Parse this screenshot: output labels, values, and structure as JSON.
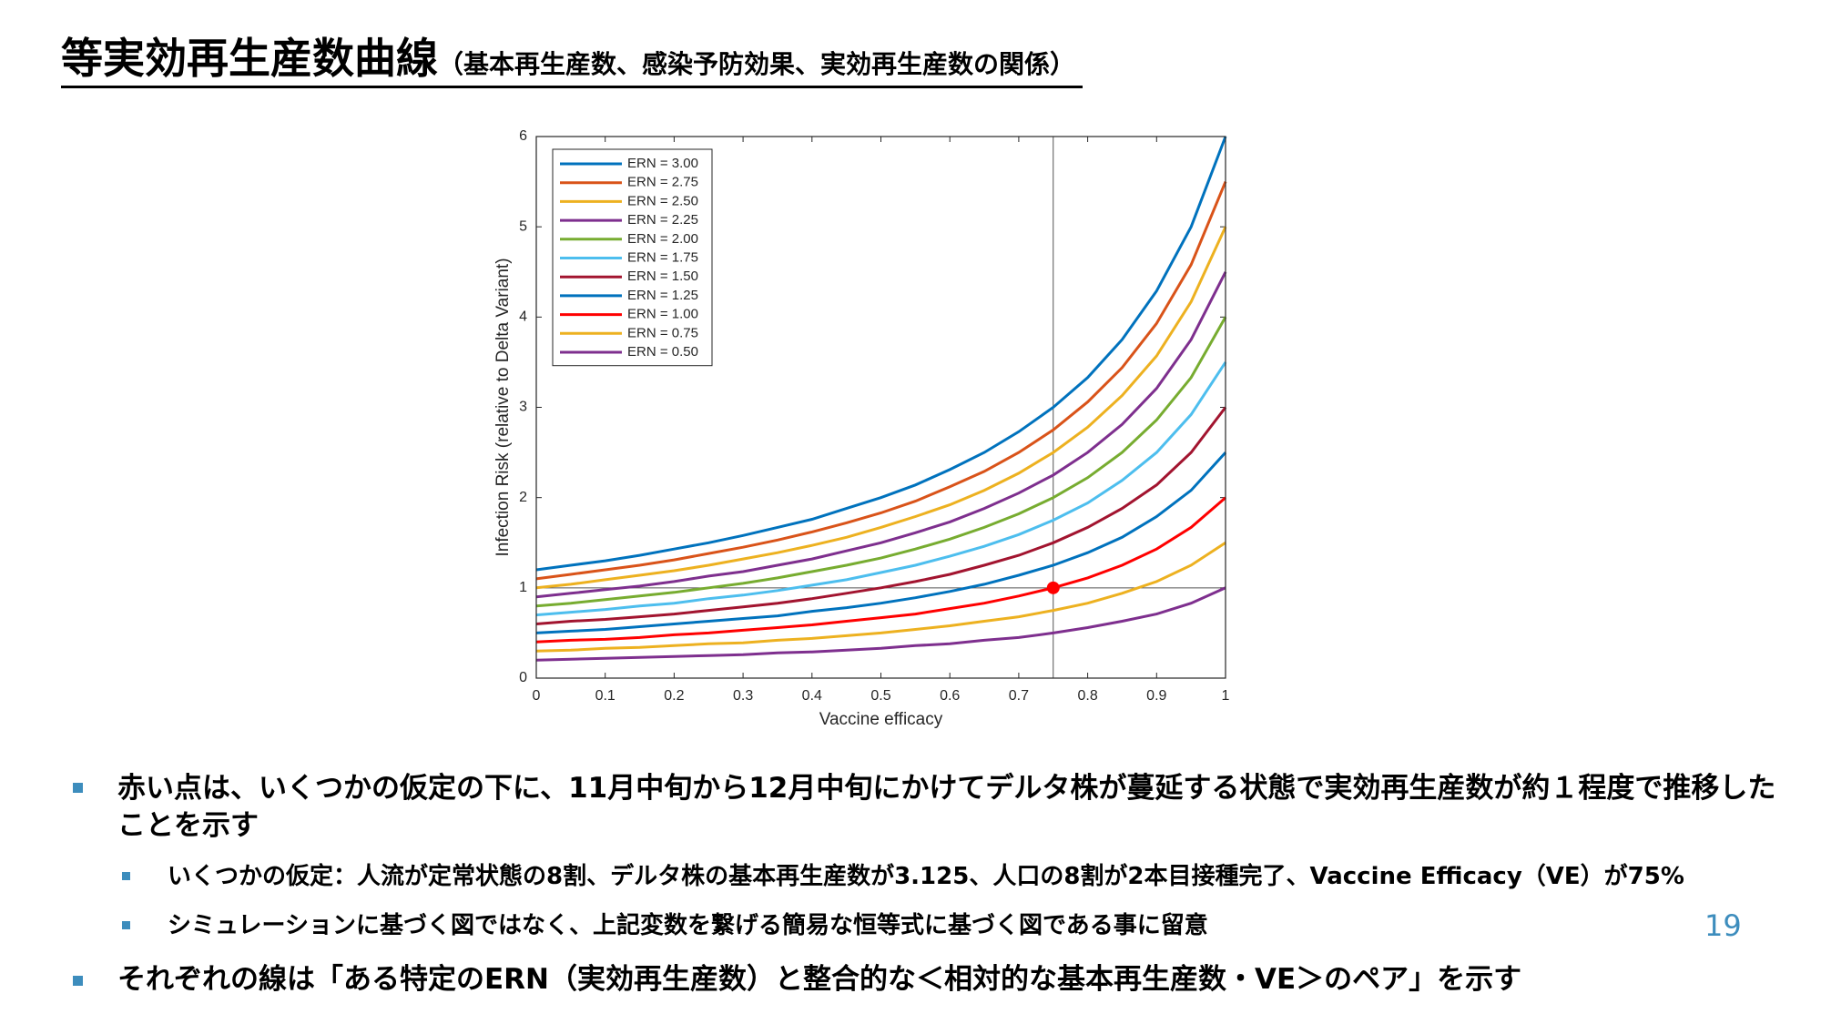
{
  "header": {
    "title": "等実効再生産数曲線",
    "subtitle": "（基本再生産数、感染予防効果、実効再生産数の関係）"
  },
  "chart_data": {
    "type": "line",
    "xlabel": "Vaccine efficacy",
    "ylabel": "Infection Risk (relative to Delta Variant)",
    "x": [
      0,
      0.05,
      0.1,
      0.15,
      0.2,
      0.25,
      0.3,
      0.35,
      0.4,
      0.45,
      0.5,
      0.55,
      0.6,
      0.65,
      0.7,
      0.75,
      0.8,
      0.85,
      0.9,
      0.95,
      1
    ],
    "series": [
      {
        "name": "ERN = 3.00",
        "color": "#0072BD",
        "values": [
          1.2,
          1.25,
          1.3,
          1.36,
          1.43,
          1.5,
          1.58,
          1.67,
          1.76,
          1.88,
          2.0,
          2.14,
          2.31,
          2.5,
          2.73,
          3.0,
          3.33,
          3.75,
          4.29,
          5.0,
          6.0
        ]
      },
      {
        "name": "ERN = 2.75",
        "color": "#D95319",
        "values": [
          1.1,
          1.15,
          1.2,
          1.25,
          1.31,
          1.38,
          1.45,
          1.53,
          1.62,
          1.72,
          1.83,
          1.96,
          2.12,
          2.29,
          2.5,
          2.75,
          3.06,
          3.44,
          3.93,
          4.58,
          5.5
        ]
      },
      {
        "name": "ERN = 2.50",
        "color": "#EDB120",
        "values": [
          1.0,
          1.04,
          1.09,
          1.14,
          1.19,
          1.25,
          1.32,
          1.39,
          1.47,
          1.56,
          1.67,
          1.79,
          1.92,
          2.08,
          2.27,
          2.5,
          2.78,
          3.13,
          3.57,
          4.17,
          5.0
        ]
      },
      {
        "name": "ERN = 2.25",
        "color": "#7E2F8E",
        "values": [
          0.9,
          0.94,
          0.98,
          1.02,
          1.07,
          1.13,
          1.18,
          1.25,
          1.32,
          1.41,
          1.5,
          1.61,
          1.73,
          1.88,
          2.05,
          2.25,
          2.5,
          2.81,
          3.21,
          3.75,
          4.5
        ]
      },
      {
        "name": "ERN = 2.00",
        "color": "#77AC30",
        "values": [
          0.8,
          0.83,
          0.87,
          0.91,
          0.95,
          1.0,
          1.05,
          1.11,
          1.18,
          1.25,
          1.33,
          1.43,
          1.54,
          1.67,
          1.82,
          2.0,
          2.22,
          2.5,
          2.86,
          3.33,
          4.0
        ]
      },
      {
        "name": "ERN = 1.75",
        "color": "#4DBEEE",
        "values": [
          0.7,
          0.73,
          0.76,
          0.8,
          0.83,
          0.88,
          0.92,
          0.97,
          1.03,
          1.09,
          1.17,
          1.25,
          1.35,
          1.46,
          1.59,
          1.75,
          1.94,
          2.19,
          2.5,
          2.92,
          3.5
        ]
      },
      {
        "name": "ERN = 1.50",
        "color": "#A2142F",
        "values": [
          0.6,
          0.63,
          0.65,
          0.68,
          0.71,
          0.75,
          0.79,
          0.83,
          0.88,
          0.94,
          1.0,
          1.07,
          1.15,
          1.25,
          1.36,
          1.5,
          1.67,
          1.88,
          2.14,
          2.5,
          3.0
        ]
      },
      {
        "name": "ERN = 1.25",
        "color": "#0072BD",
        "values": [
          0.5,
          0.52,
          0.54,
          0.57,
          0.6,
          0.63,
          0.66,
          0.69,
          0.74,
          0.78,
          0.83,
          0.89,
          0.96,
          1.04,
          1.14,
          1.25,
          1.39,
          1.56,
          1.79,
          2.08,
          2.5
        ]
      },
      {
        "name": "ERN = 1.00",
        "color": "#FF0000",
        "values": [
          0.4,
          0.42,
          0.43,
          0.45,
          0.48,
          0.5,
          0.53,
          0.56,
          0.59,
          0.63,
          0.67,
          0.71,
          0.77,
          0.83,
          0.91,
          1.0,
          1.11,
          1.25,
          1.43,
          1.67,
          2.0
        ]
      },
      {
        "name": "ERN = 0.75",
        "color": "#EDB120",
        "values": [
          0.3,
          0.31,
          0.33,
          0.34,
          0.36,
          0.38,
          0.39,
          0.42,
          0.44,
          0.47,
          0.5,
          0.54,
          0.58,
          0.63,
          0.68,
          0.75,
          0.83,
          0.94,
          1.07,
          1.25,
          1.5
        ]
      },
      {
        "name": "ERN = 0.50",
        "color": "#7E2F8E",
        "values": [
          0.2,
          0.21,
          0.22,
          0.23,
          0.24,
          0.25,
          0.26,
          0.28,
          0.29,
          0.31,
          0.33,
          0.36,
          0.38,
          0.42,
          0.45,
          0.5,
          0.56,
          0.63,
          0.71,
          0.83,
          1.0
        ]
      }
    ],
    "highlight": {
      "x": 0.75,
      "y": 1,
      "color": "#FF0000"
    },
    "xlim": [
      0,
      1
    ],
    "xticks": [
      0,
      0.1,
      0.2,
      0.3,
      0.4,
      0.5,
      0.6,
      0.7,
      0.8,
      0.9,
      1
    ],
    "ylim": [
      0,
      6
    ],
    "yticks": [
      0,
      1,
      2,
      3,
      4,
      5,
      6
    ],
    "legend": "northwest"
  },
  "bullets": [
    {
      "text": "赤い点は、いくつかの仮定の下に、11月中旬から12月中旬にかけてデルタ株が蔓延する状態で実効再生産数が約１程度で推移したことを示す",
      "children": [
        "いくつかの仮定：人流が定常状態の8割、デルタ株の基本再生産数が3.125、人口の8割が2本目接種完了、Vaccine Efficacy（VE）が75%",
        "シミュレーションに基づく図ではなく、上記変数を繋げる簡易な恒等式に基づく図である事に留意"
      ]
    },
    {
      "text": "それぞれの線は「ある特定のERN（実効再生産数）と整合的な＜相対的な基本再生産数・VE＞のペア」を示す",
      "children": []
    }
  ],
  "page_number": "19"
}
